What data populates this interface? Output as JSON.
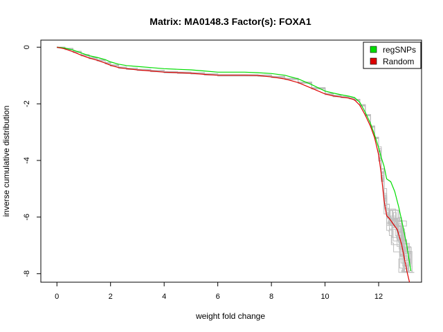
{
  "chart_data": {
    "type": "line",
    "title": "Matrix: MA0148.3 Factor(s): FOXA1",
    "xlabel": "weight fold change",
    "ylabel": "inverse cumulative distribution",
    "xlim": [
      -0.6,
      13.6
    ],
    "ylim": [
      -8.3,
      0.25
    ],
    "x_ticks": [
      0,
      2,
      4,
      6,
      8,
      10,
      12
    ],
    "y_ticks": [
      0,
      -2,
      -4,
      -6,
      -8
    ],
    "legend": {
      "placement": "top-right"
    },
    "series": [
      {
        "name": "regSNPs",
        "color": "#00dd00",
        "x": [
          0,
          0.3,
          0.6,
          0.9,
          1.2,
          1.5,
          1.8,
          2.0,
          2.3,
          2.6,
          3.0,
          3.5,
          4.0,
          4.5,
          5.0,
          5.5,
          6.0,
          6.5,
          7.0,
          7.5,
          8.0,
          8.5,
          9.0,
          9.5,
          10.0,
          10.3,
          10.6,
          10.9,
          11.1,
          11.3,
          11.5,
          11.7,
          11.85,
          12.0,
          12.1,
          12.2,
          12.3,
          12.45,
          12.6,
          12.75,
          12.9,
          13.05,
          13.2
        ],
        "y": [
          0,
          -0.03,
          -0.1,
          -0.2,
          -0.3,
          -0.36,
          -0.44,
          -0.52,
          -0.6,
          -0.65,
          -0.68,
          -0.72,
          -0.76,
          -0.78,
          -0.8,
          -0.84,
          -0.88,
          -0.88,
          -0.88,
          -0.9,
          -0.93,
          -0.99,
          -1.12,
          -1.32,
          -1.55,
          -1.62,
          -1.68,
          -1.73,
          -1.78,
          -1.95,
          -2.3,
          -2.7,
          -3.1,
          -3.55,
          -3.9,
          -4.2,
          -4.65,
          -4.75,
          -5.1,
          -5.65,
          -6.3,
          -7.0,
          -7.9
        ]
      },
      {
        "name": "Random",
        "color": "#dd0000",
        "x": [
          0,
          0.3,
          0.6,
          0.9,
          1.2,
          1.5,
          1.8,
          2.0,
          2.3,
          2.6,
          3.0,
          3.5,
          4.0,
          4.5,
          5.0,
          5.5,
          6.0,
          6.5,
          7.0,
          7.5,
          8.0,
          8.5,
          9.0,
          9.5,
          10.0,
          10.3,
          10.6,
          10.9,
          11.1,
          11.3,
          11.5,
          11.7,
          11.85,
          12.0,
          12.1,
          12.2,
          12.3,
          12.4,
          12.55,
          12.7,
          12.85,
          12.95,
          13.05,
          13.15
        ],
        "y": [
          0,
          -0.06,
          -0.16,
          -0.28,
          -0.38,
          -0.46,
          -0.56,
          -0.64,
          -0.72,
          -0.76,
          -0.8,
          -0.84,
          -0.88,
          -0.9,
          -0.92,
          -0.96,
          -0.99,
          -0.99,
          -0.99,
          -1.0,
          -1.05,
          -1.12,
          -1.25,
          -1.45,
          -1.65,
          -1.72,
          -1.76,
          -1.8,
          -1.86,
          -2.05,
          -2.4,
          -2.8,
          -3.2,
          -3.8,
          -4.5,
          -5.4,
          -5.95,
          -6.05,
          -6.25,
          -6.45,
          -6.95,
          -7.4,
          -7.9,
          -8.3
        ]
      }
    ],
    "random_replicates_color": "#bebebe"
  }
}
